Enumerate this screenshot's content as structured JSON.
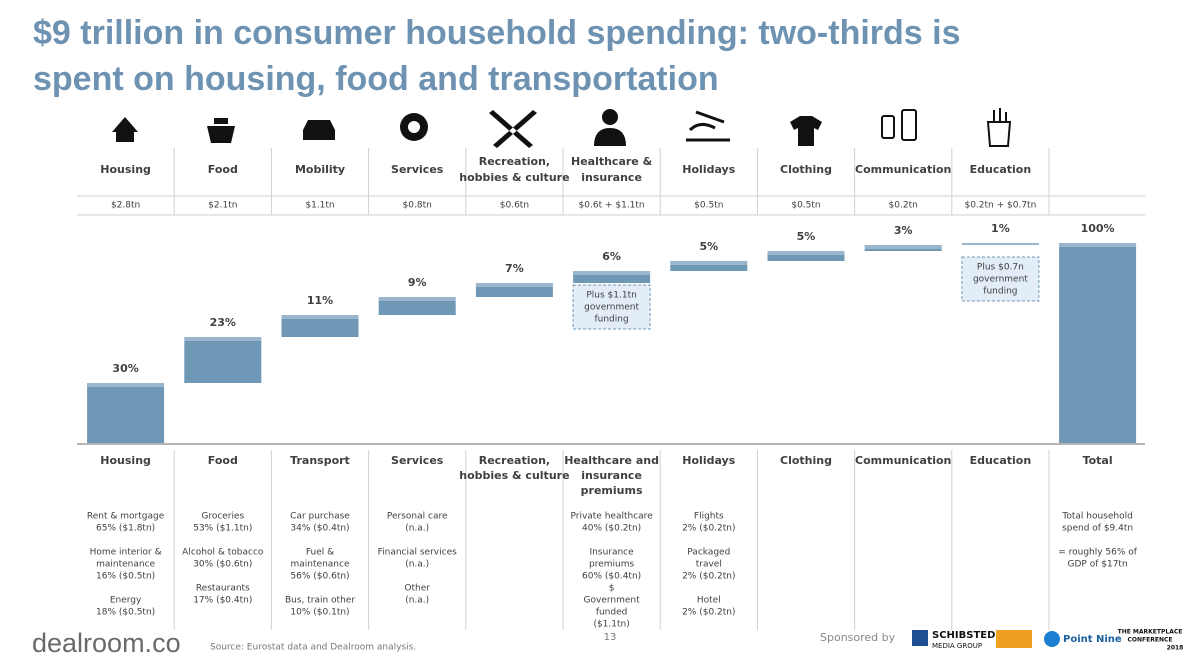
{
  "title": [
    "$9 trillion in consumer household spending: two-thirds is",
    "spent on housing, food and transportation"
  ],
  "chart_data": {
    "type": "waterfall",
    "color": "#6f97b6",
    "header_labels": [
      [
        "Housing"
      ],
      [
        "Food"
      ],
      [
        "Mobility"
      ],
      [
        "Services"
      ],
      [
        "Recreation,",
        "hobbies & culture"
      ],
      [
        "Healthcare &",
        "insurance"
      ],
      [
        "Holidays"
      ],
      [
        "Clothing"
      ],
      [
        "Communication"
      ],
      [
        "Education"
      ],
      null
    ],
    "amounts": [
      "$2.8tn",
      "$2.1tn",
      "$1.1tn",
      "$0.8tn",
      "$0.6tn",
      "$0.6t + $1.1tn",
      "$0.5tn",
      "$0.5tn",
      "$0.2tn",
      "$0.2tn + $0.7tn",
      null
    ],
    "categories": [
      [
        "Housing"
      ],
      [
        "Food"
      ],
      [
        "Transport"
      ],
      [
        "Services"
      ],
      [
        "Recreation,",
        "hobbies & culture"
      ],
      [
        "Healthcare and",
        "insurance",
        "premiums"
      ],
      [
        "Holidays"
      ],
      [
        "Clothing"
      ],
      [
        "Communication"
      ],
      [
        "Education"
      ],
      [
        "Total"
      ]
    ],
    "values": [
      30,
      23,
      11,
      9,
      7,
      6,
      5,
      5,
      3,
      1,
      100
    ],
    "value_labels": [
      "30%",
      "23%",
      "11%",
      "9%",
      "7%",
      "6%",
      "5%",
      "5%",
      "3%",
      "1%",
      "100%"
    ],
    "annotations": [
      {
        "category": "Healthcare and",
        "lines": [
          "Plus $1.1tn",
          "government",
          "funding"
        ]
      },
      {
        "category": "Education",
        "lines": [
          "Plus $0.7n",
          "government",
          "funding"
        ]
      }
    ],
    "details": [
      [
        [
          "Rent & mortgage",
          "65% ($1.8tn)"
        ],
        [
          "Home interior &",
          "maintenance",
          "16% ($0.5tn)"
        ],
        [
          "Energy",
          "18% ($0.5tn)"
        ]
      ],
      [
        [
          "Groceries",
          "53% ($1.1tn)"
        ],
        [
          "Alcohol & tobacco",
          "30% ($0.6tn)"
        ],
        [
          "Restaurants",
          "17% ($0.4tn)"
        ]
      ],
      [
        [
          "Car purchase",
          "34% ($0.4tn)"
        ],
        [
          "Fuel &",
          "maintenance",
          "56% ($0.6tn)"
        ],
        [
          "Bus, train other",
          "10% ($0.1tn)"
        ]
      ],
      [
        [
          "Personal care",
          "(n.a.)"
        ],
        [
          "Financial services",
          "(n.a.)"
        ],
        [
          "Other",
          "(n.a.)"
        ]
      ],
      [],
      [
        [
          "Private healthcare",
          "40% ($0.2tn)"
        ],
        [
          "Insurance",
          "premiums",
          "60% ($0.4tn)",
          "$",
          "Government",
          "funded",
          "($1.1tn)"
        ]
      ],
      [
        [
          "Flights",
          "2% ($0.2tn)"
        ],
        [
          "Packaged",
          "travel",
          "2% ($0.2tn)"
        ],
        [
          "Hotel",
          "2% ($0.2tn)"
        ]
      ],
      [],
      [],
      [],
      [
        [
          "Total household",
          "spend of $9.4tn"
        ],
        [
          "= roughly 56% of",
          "GDP of $17tn"
        ]
      ]
    ]
  },
  "footer": {
    "logo": "dealroom.co",
    "source": "Source: Eurostat data and Dealroom analysis.",
    "page": "13",
    "sponsored_by": "Sponsored by",
    "sponsors": [
      "SCHIBSTED",
      "MEDIA GROUP",
      "Point Nine",
      "THE MARKETPLACE",
      "CONFERENCE",
      "2018"
    ]
  }
}
